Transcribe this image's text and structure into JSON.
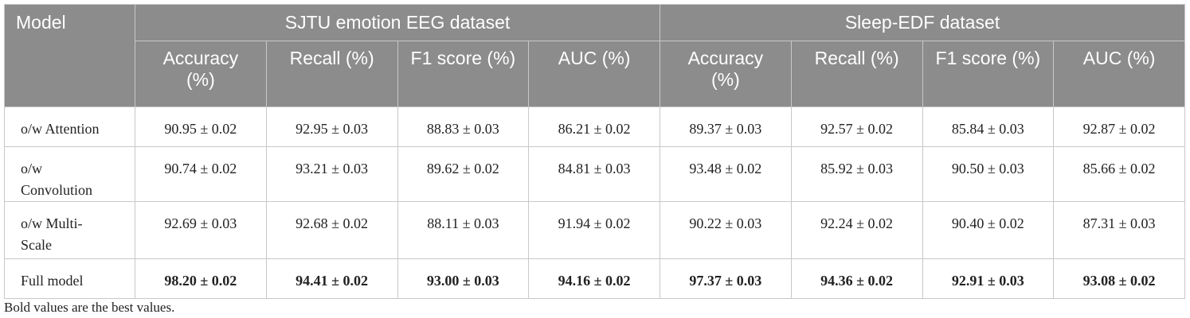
{
  "table": {
    "model_header": "Model",
    "groups": [
      "SJTU emotion EEG dataset",
      "Sleep-EDF dataset"
    ],
    "columns": [
      "Accuracy (%)",
      "Recall (%)",
      "F1 score (%)",
      "AUC (%)",
      "Accuracy (%)",
      "Recall (%)",
      "F1 score (%)",
      "AUC (%)"
    ],
    "rows": [
      [
        "o/w Attention",
        "90.95 ± 0.02",
        "92.95 ± 0.03",
        "88.83 ± 0.03",
        "86.21 ± 0.02",
        "89.37 ± 0.03",
        "92.57 ± 0.02",
        "85.84 ± 0.03",
        "92.87 ± 0.02"
      ],
      [
        "o/w Convolution",
        "90.74 ± 0.02",
        "93.21 ± 0.03",
        "89.62 ± 0.02",
        "84.81 ± 0.03",
        "93.48 ± 0.02",
        "85.92 ± 0.03",
        "90.50 ± 0.03",
        "85.66 ± 0.02"
      ],
      [
        "o/w Multi-Scale",
        "92.69 ± 0.03",
        "92.68 ± 0.02",
        "88.11 ± 0.03",
        "91.94 ± 0.02",
        "90.22 ± 0.03",
        "92.24 ± 0.02",
        "90.40 ± 0.02",
        "87.31 ± 0.03"
      ],
      [
        "Full model",
        "98.20 ± 0.02",
        "94.41 ± 0.02",
        "93.00 ± 0.03",
        "94.16 ± 0.02",
        "97.37 ± 0.03",
        "94.36 ± 0.02",
        "92.91 ± 0.03",
        "93.08 ± 0.02"
      ]
    ],
    "footnote": "Bold values are the best values."
  }
}
